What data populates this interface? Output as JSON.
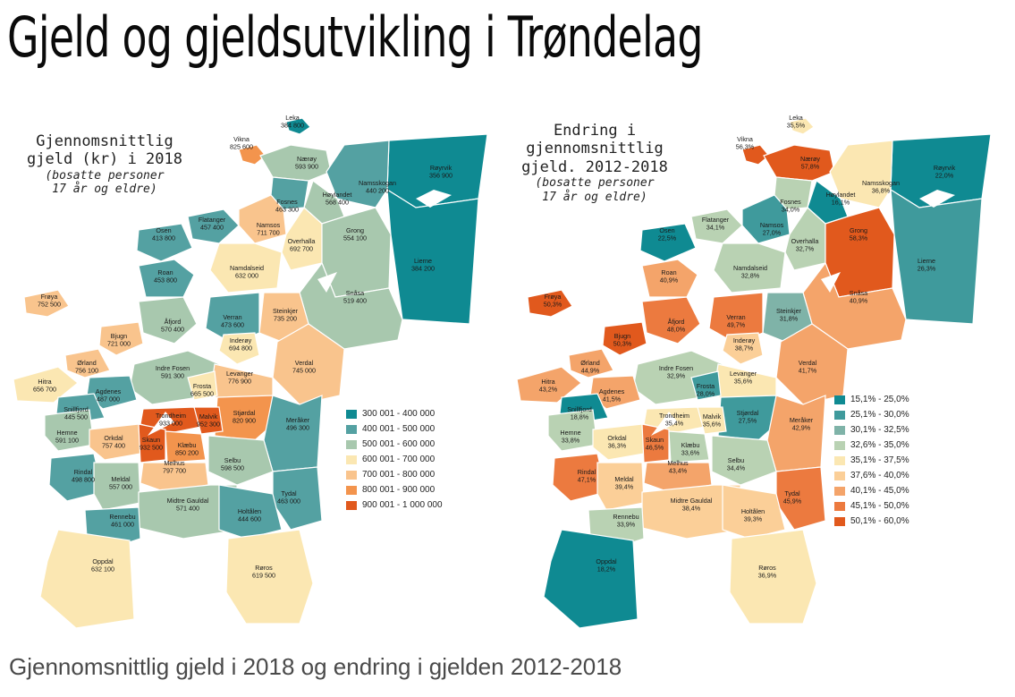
{
  "page": {
    "title": "Gjeld og gjeldsutvikling i Trøndelag",
    "caption": "Gjennomsnittlig gjeld i 2018 og endring i gjelden 2012-2018"
  },
  "colors": {
    "c1": "#0f8a92",
    "c2": "#54a1a2",
    "c3": "#a8c8ae",
    "c4": "#fbe7b2",
    "c5": "#f9c48d",
    "c6": "#f3944d",
    "c7": "#e1591d"
  },
  "maps": [
    {
      "id": "debt",
      "title_lines": [
        "Gjennomsnittlig",
        "gjeld (kr) i 2018"
      ],
      "subtitle_lines": [
        "(bosatte personer",
        "17 år og eldre)"
      ],
      "legend": [
        {
          "label": "300 001 - 400 000",
          "color": "#0f8a92"
        },
        {
          "label": "400 001 - 500 000",
          "color": "#54a1a2"
        },
        {
          "label": "500 001 - 600 000",
          "color": "#a8c8ae"
        },
        {
          "label": "600 001 - 700 000",
          "color": "#fbe7b2"
        },
        {
          "label": "700 001 - 800 000",
          "color": "#f9c48d"
        },
        {
          "label": "800 001 - 900 000",
          "color": "#f3944d"
        },
        {
          "label": "900 001 - 1 000 000",
          "color": "#e1591d"
        }
      ],
      "regions": [
        {
          "name": "Leka",
          "value": "384 800",
          "color": "#0f8a92"
        },
        {
          "name": "Vikna",
          "value": "825 600",
          "color": "#f3944d"
        },
        {
          "name": "Nærøy",
          "value": "593 900",
          "color": "#a8c8ae"
        },
        {
          "name": "Røyrvik",
          "value": "356 900",
          "color": "#0f8a92"
        },
        {
          "name": "Namsskogan",
          "value": "440 200",
          "color": "#54a1a2"
        },
        {
          "name": "Høylandet",
          "value": "568 400",
          "color": "#a8c8ae"
        },
        {
          "name": "Fosnes",
          "value": "463 300",
          "color": "#54a1a2"
        },
        {
          "name": "Flatanger",
          "value": "457 400",
          "color": "#54a1a2"
        },
        {
          "name": "Namsos",
          "value": "711 700",
          "color": "#f9c48d"
        },
        {
          "name": "Osen",
          "value": "413 800",
          "color": "#54a1a2"
        },
        {
          "name": "Overhalla",
          "value": "692 700",
          "color": "#fbe7b2"
        },
        {
          "name": "Grong",
          "value": "554 100",
          "color": "#a8c8ae"
        },
        {
          "name": "Lierne",
          "value": "384 200",
          "color": "#0f8a92"
        },
        {
          "name": "Namdalseid",
          "value": "632 000",
          "color": "#fbe7b2"
        },
        {
          "name": "Roan",
          "value": "453 800",
          "color": "#54a1a2"
        },
        {
          "name": "Snåsa",
          "value": "519 400",
          "color": "#a8c8ae"
        },
        {
          "name": "Frøya",
          "value": "752 500",
          "color": "#f9c48d"
        },
        {
          "name": "Steinkjer",
          "value": "735 200",
          "color": "#f9c48d"
        },
        {
          "name": "Åfjord",
          "value": "570 400",
          "color": "#a8c8ae"
        },
        {
          "name": "Verran",
          "value": "473 600",
          "color": "#54a1a2"
        },
        {
          "name": "Bjugn",
          "value": "721 000",
          "color": "#f9c48d"
        },
        {
          "name": "Inderøy",
          "value": "694 800",
          "color": "#fbe7b2"
        },
        {
          "name": "Ørland",
          "value": "756 100",
          "color": "#f9c48d"
        },
        {
          "name": "Verdal",
          "value": "745 000",
          "color": "#f9c48d"
        },
        {
          "name": "Indre Fosen",
          "value": "591 300",
          "color": "#a8c8ae"
        },
        {
          "name": "Hitra",
          "value": "656 700",
          "color": "#fbe7b2"
        },
        {
          "name": "Levanger",
          "value": "776 900",
          "color": "#f9c48d"
        },
        {
          "name": "Agdenes",
          "value": "487 000",
          "color": "#54a1a2"
        },
        {
          "name": "Frosta",
          "value": "665 500",
          "color": "#fbe7b2"
        },
        {
          "name": "Snillfjord",
          "value": "445 500",
          "color": "#54a1a2"
        },
        {
          "name": "Stjørdal",
          "value": "820 900",
          "color": "#f3944d"
        },
        {
          "name": "Trondheim",
          "value": "933 000",
          "color": "#e1591d"
        },
        {
          "name": "Malvik",
          "value": "952 300",
          "color": "#e1591d"
        },
        {
          "name": "Hemne",
          "value": "591 100",
          "color": "#a8c8ae"
        },
        {
          "name": "Meråker",
          "value": "496 300",
          "color": "#54a1a2"
        },
        {
          "name": "Orkdal",
          "value": "757 400",
          "color": "#f9c48d"
        },
        {
          "name": "Skaun",
          "value": "932 500",
          "color": "#e1591d"
        },
        {
          "name": "Klæbu",
          "value": "850 200",
          "color": "#f3944d"
        },
        {
          "name": "Melhus",
          "value": "797 700",
          "color": "#f9c48d"
        },
        {
          "name": "Selbu",
          "value": "598 500",
          "color": "#a8c8ae"
        },
        {
          "name": "Rindal",
          "value": "498 800",
          "color": "#54a1a2"
        },
        {
          "name": "Meldal",
          "value": "557 000",
          "color": "#a8c8ae"
        },
        {
          "name": "Tydal",
          "value": "463 000",
          "color": "#54a1a2"
        },
        {
          "name": "Midtre Gauldal",
          "value": "571 400",
          "color": "#a8c8ae"
        },
        {
          "name": "Rennebu",
          "value": "461 000",
          "color": "#54a1a2"
        },
        {
          "name": "Holtålen",
          "value": "444 600",
          "color": "#54a1a2"
        },
        {
          "name": "Oppdal",
          "value": "632 100",
          "color": "#fbe7b2"
        },
        {
          "name": "Røros",
          "value": "619 500",
          "color": "#fbe7b2"
        }
      ]
    },
    {
      "id": "change",
      "title_lines": [
        "Endring i",
        "gjennomsnittlig",
        "gjeld. 2012-2018"
      ],
      "subtitle_lines": [
        "(bosatte personer",
        "17 år og eldre)"
      ],
      "legend": [
        {
          "label": "15,1% - 25,0%",
          "color": "#0f8a92"
        },
        {
          "label": "25,1% - 30,0%",
          "color": "#3f9a9c"
        },
        {
          "label": "30,1% - 32,5%",
          "color": "#7fb3a8"
        },
        {
          "label": "32,6% - 35,0%",
          "color": "#b9d2b3"
        },
        {
          "label": "35,1% - 37,5%",
          "color": "#fbe7b2"
        },
        {
          "label": "37,6% - 40,0%",
          "color": "#fbcf98"
        },
        {
          "label": "40,1% - 45,0%",
          "color": "#f4a46a"
        },
        {
          "label": "45,1% - 50,0%",
          "color": "#ec7a3f"
        },
        {
          "label": "50,1% - 60,0%",
          "color": "#e1591d"
        }
      ],
      "regions": [
        {
          "name": "Leka",
          "value": "35,5%",
          "color": "#fbe7b2"
        },
        {
          "name": "Vikna",
          "value": "56,3%",
          "color": "#e1591d"
        },
        {
          "name": "Nærøy",
          "value": "57,8%",
          "color": "#e1591d"
        },
        {
          "name": "Røyrvik",
          "value": "22,0%",
          "color": "#0f8a92"
        },
        {
          "name": "Namsskogan",
          "value": "36,8%",
          "color": "#fbe7b2"
        },
        {
          "name": "Høylandet",
          "value": "16,1%",
          "color": "#0f8a92"
        },
        {
          "name": "Fosnes",
          "value": "34,0%",
          "color": "#b9d2b3"
        },
        {
          "name": "Flatanger",
          "value": "34,1%",
          "color": "#b9d2b3"
        },
        {
          "name": "Namsos",
          "value": "27,0%",
          "color": "#3f9a9c"
        },
        {
          "name": "Osen",
          "value": "22,5%",
          "color": "#0f8a92"
        },
        {
          "name": "Overhalla",
          "value": "32,7%",
          "color": "#b9d2b3"
        },
        {
          "name": "Grong",
          "value": "58,3%",
          "color": "#e1591d"
        },
        {
          "name": "Lierne",
          "value": "26,3%",
          "color": "#3f9a9c"
        },
        {
          "name": "Namdalseid",
          "value": "32,8%",
          "color": "#b9d2b3"
        },
        {
          "name": "Roan",
          "value": "40,9%",
          "color": "#f4a46a"
        },
        {
          "name": "Snåsa",
          "value": "40,9%",
          "color": "#f4a46a"
        },
        {
          "name": "Frøya",
          "value": "50,3%",
          "color": "#e1591d"
        },
        {
          "name": "Steinkjer",
          "value": "31,8%",
          "color": "#7fb3a8"
        },
        {
          "name": "Åfjord",
          "value": "48,0%",
          "color": "#ec7a3f"
        },
        {
          "name": "Verran",
          "value": "49,7%",
          "color": "#ec7a3f"
        },
        {
          "name": "Bjugn",
          "value": "50,3%",
          "color": "#e1591d"
        },
        {
          "name": "Inderøy",
          "value": "38,7%",
          "color": "#fbcf98"
        },
        {
          "name": "Ørland",
          "value": "44,9%",
          "color": "#f4a46a"
        },
        {
          "name": "Verdal",
          "value": "41,7%",
          "color": "#f4a46a"
        },
        {
          "name": "Indre Fosen",
          "value": "32,9%",
          "color": "#b9d2b3"
        },
        {
          "name": "Hitra",
          "value": "43,2%",
          "color": "#f4a46a"
        },
        {
          "name": "Levanger",
          "value": "35,6%",
          "color": "#fbe7b2"
        },
        {
          "name": "Agdenes",
          "value": "41,5%",
          "color": "#f4a46a"
        },
        {
          "name": "Frosta",
          "value": "28,0%",
          "color": "#3f9a9c"
        },
        {
          "name": "Snillfjord",
          "value": "18,8%",
          "color": "#0f8a92"
        },
        {
          "name": "Stjørdal",
          "value": "27,5%",
          "color": "#3f9a9c"
        },
        {
          "name": "Trondheim",
          "value": "35,4%",
          "color": "#fbe7b2"
        },
        {
          "name": "Malvik",
          "value": "35,6%",
          "color": "#fbe7b2"
        },
        {
          "name": "Hemne",
          "value": "33,8%",
          "color": "#b9d2b3"
        },
        {
          "name": "Meråker",
          "value": "42,9%",
          "color": "#f4a46a"
        },
        {
          "name": "Orkdal",
          "value": "36,3%",
          "color": "#fbe7b2"
        },
        {
          "name": "Skaun",
          "value": "46,5%",
          "color": "#ec7a3f"
        },
        {
          "name": "Klæbu",
          "value": "33,6%",
          "color": "#b9d2b3"
        },
        {
          "name": "Melhus",
          "value": "43,4%",
          "color": "#f4a46a"
        },
        {
          "name": "Selbu",
          "value": "34,4%",
          "color": "#b9d2b3"
        },
        {
          "name": "Rindal",
          "value": "47,1%",
          "color": "#ec7a3f"
        },
        {
          "name": "Meldal",
          "value": "39,4%",
          "color": "#fbcf98"
        },
        {
          "name": "Tydal",
          "value": "45,9%",
          "color": "#ec7a3f"
        },
        {
          "name": "Midtre Gauldal",
          "value": "38,4%",
          "color": "#fbcf98"
        },
        {
          "name": "Rennebu",
          "value": "33,9%",
          "color": "#b9d2b3"
        },
        {
          "name": "Holtålen",
          "value": "39,3%",
          "color": "#fbcf98"
        },
        {
          "name": "Oppdal",
          "value": "18,2%",
          "color": "#0f8a92"
        },
        {
          "name": "Røros",
          "value": "36,9%",
          "color": "#fbe7b2"
        }
      ]
    }
  ]
}
